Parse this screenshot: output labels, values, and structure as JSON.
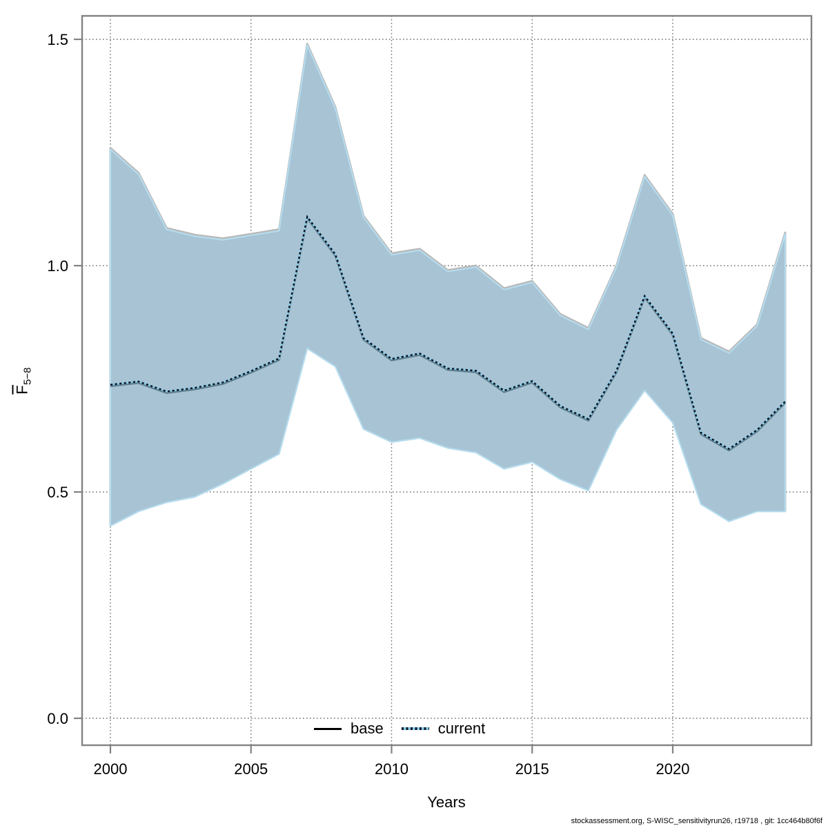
{
  "footer": {
    "credit": "stockassessment.org, S-WISC_sensitivityrun26, r19718 , git: 1cc464b80f6f"
  },
  "y_axis": {
    "label_main": "F",
    "label_sub": "5−8"
  },
  "x_axis": {
    "label": "Years"
  },
  "legend": {
    "base_label": "base",
    "current_label": "current"
  },
  "chart_data": {
    "type": "area",
    "title": "",
    "xlabel": "Years",
    "ylabel": "F5-8 (mean fishing mortality, ages 5-8, with overbar)",
    "ylim": [
      0.0,
      1.5
    ],
    "yticks": [
      "0.0",
      "0.5",
      "1.0",
      "1.5"
    ],
    "ytick_values": [
      0.0,
      0.5,
      1.0,
      1.5
    ],
    "xticks": [
      "2000",
      "2005",
      "2010",
      "2015",
      "2020"
    ],
    "xtick_values": [
      2000,
      2005,
      2010,
      2015,
      2020
    ],
    "grid": true,
    "legend_position": "bottom-center",
    "x": [
      2000,
      2001,
      2002,
      2003,
      2004,
      2005,
      2006,
      2007,
      2008,
      2009,
      2010,
      2011,
      2012,
      2013,
      2014,
      2015,
      2016,
      2017,
      2018,
      2019,
      2020,
      2021,
      2022,
      2023,
      2024
    ],
    "series": [
      {
        "name": "base",
        "style": "solid",
        "values": [
          0.737,
          0.744,
          0.722,
          0.73,
          0.742,
          0.767,
          0.795,
          1.108,
          1.025,
          0.84,
          0.794,
          0.806,
          0.773,
          0.768,
          0.724,
          0.745,
          0.69,
          0.661,
          0.768,
          0.933,
          0.85,
          0.631,
          0.595,
          0.637,
          0.7
        ]
      },
      {
        "name": "current",
        "style": "dotted",
        "values": [
          0.737,
          0.744,
          0.722,
          0.73,
          0.742,
          0.767,
          0.795,
          1.108,
          1.025,
          0.84,
          0.794,
          0.806,
          0.773,
          0.768,
          0.724,
          0.745,
          0.69,
          0.661,
          0.768,
          0.933,
          0.85,
          0.631,
          0.595,
          0.637,
          0.7
        ]
      }
    ],
    "band": {
      "name": "confidence interval",
      "lower": [
        0.428,
        0.46,
        0.48,
        0.492,
        0.521,
        0.554,
        0.587,
        0.82,
        0.78,
        0.642,
        0.613,
        0.622,
        0.6,
        0.59,
        0.554,
        0.569,
        0.531,
        0.506,
        0.64,
        0.727,
        0.656,
        0.476,
        0.438,
        0.46,
        0.46
      ],
      "upper": [
        1.26,
        1.205,
        1.083,
        1.068,
        1.06,
        1.07,
        1.08,
        1.49,
        1.35,
        1.11,
        1.027,
        1.037,
        0.99,
        1.0,
        0.95,
        0.966,
        0.893,
        0.862,
        1.0,
        1.2,
        1.114,
        0.84,
        0.81,
        0.87,
        1.073
      ]
    },
    "colors": {
      "band_fill": "#a7c3d4",
      "band_base_stroke": "#b9b9b9",
      "band_current_stroke": "#b5dcee",
      "base_line": "#5f7d8c",
      "current_line_bg": "#8ccbe8",
      "current_line_dash": "#06131f",
      "legend_base_line": "#000000",
      "grid": "#6e6e6e",
      "axis": "#828282",
      "text": "#000000"
    }
  }
}
